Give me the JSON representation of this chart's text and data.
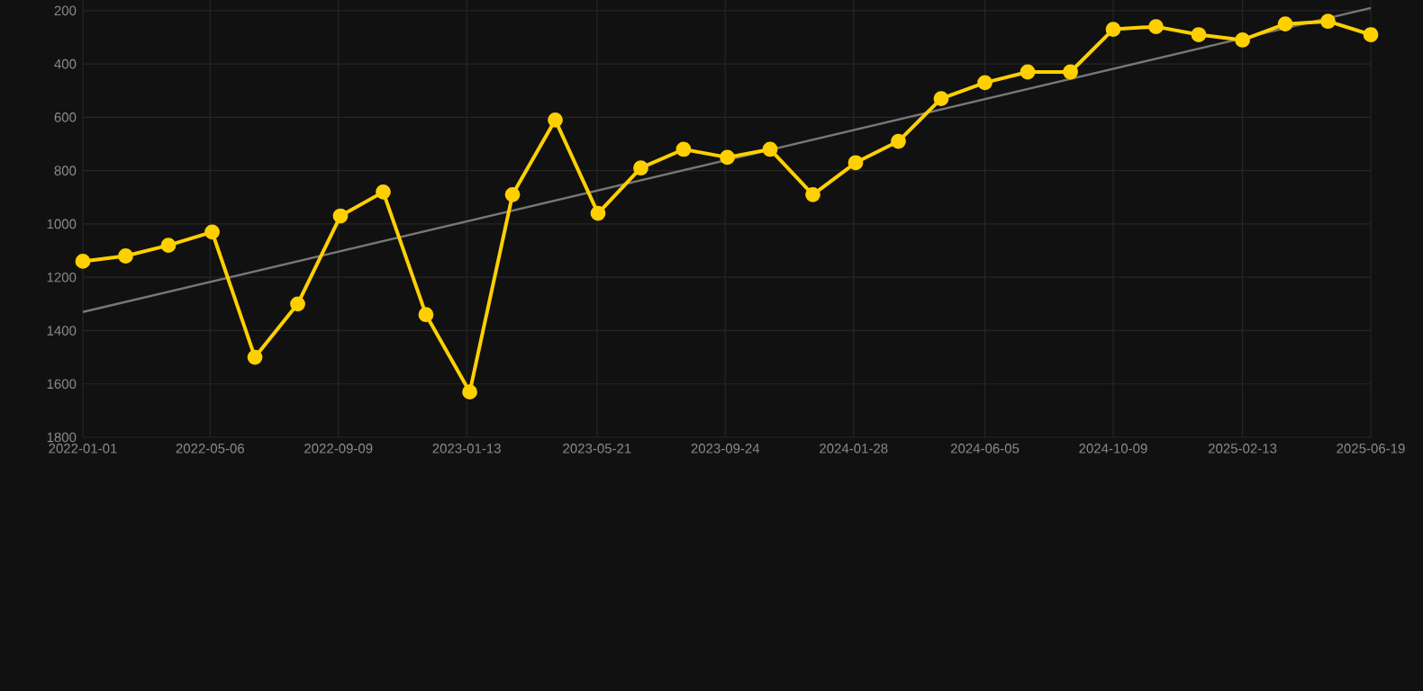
{
  "chart_data": {
    "type": "line",
    "x": [
      "2022-01-01",
      "2022-02-12",
      "2022-03-26",
      "2022-05-08",
      "2022-06-19",
      "2022-07-31",
      "2022-09-11",
      "2022-10-23",
      "2022-12-04",
      "2023-01-16",
      "2023-02-27",
      "2023-04-10",
      "2023-05-22",
      "2023-07-03",
      "2023-08-14",
      "2023-09-26",
      "2023-11-07",
      "2023-12-19",
      "2024-01-30",
      "2024-03-12",
      "2024-04-23",
      "2024-06-05",
      "2024-07-17",
      "2024-08-28",
      "2024-10-09",
      "2024-11-20",
      "2025-01-01",
      "2025-02-13",
      "2025-03-27",
      "2025-05-08",
      "2025-06-19"
    ],
    "series": [
      {
        "color": "#ffd000",
        "values": [
          1140,
          1120,
          1080,
          1030,
          1500,
          1300,
          970,
          880,
          1340,
          1630,
          890,
          610,
          960,
          790,
          720,
          750,
          720,
          890,
          770,
          690,
          530,
          470,
          430,
          430,
          270,
          260,
          290,
          310,
          250,
          240,
          290
        ]
      },
      {
        "type": "line",
        "color": "#777777",
        "marker": "none",
        "x": [
          "2022-01-01",
          "2025-06-19"
        ],
        "values": [
          1330,
          190
        ]
      }
    ],
    "xlim": [
      "2022-01-01",
      "2025-06-19"
    ],
    "xticks": [
      "2022-01-01",
      "2022-05-06",
      "2022-09-09",
      "2023-01-13",
      "2023-05-21",
      "2023-09-24",
      "2024-01-28",
      "2024-06-05",
      "2024-10-09",
      "2025-02-13",
      "2025-06-19"
    ],
    "ylim": [
      1800,
      160
    ],
    "yticks": [
      200,
      400,
      600,
      800,
      1000,
      1200,
      1400,
      1600,
      1800
    ],
    "grid": true,
    "marker": "circle",
    "line_style": "solid"
  }
}
